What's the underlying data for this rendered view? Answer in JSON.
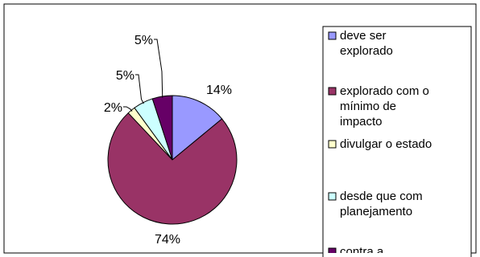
{
  "chart_data": {
    "type": "pie",
    "title": "",
    "slices": [
      {
        "label": "deve ser explorado",
        "legend_lines": [
          "deve ser",
          "explorado"
        ],
        "value": 14,
        "percent_label": "14%",
        "color": "#9999FF"
      },
      {
        "label": "explorado com o mínimo de impacto",
        "legend_lines": [
          "explorado com o",
          "mínimo de",
          "impacto"
        ],
        "value": 74,
        "percent_label": "74%",
        "color": "#993366"
      },
      {
        "label": "divulgar o estado",
        "legend_lines": [
          "divulgar o estado"
        ],
        "value": 2,
        "percent_label": "2%",
        "color": "#FFFFCC"
      },
      {
        "label": "desde que com planejamento",
        "legend_lines": [
          "desde que com",
          "planejamento"
        ],
        "value": 5,
        "percent_label": "5%",
        "color": "#CCFFFF"
      },
      {
        "label": "contra a",
        "legend_lines": [
          "contra a"
        ],
        "value": 5,
        "percent_label": "5%",
        "color": "#660066"
      }
    ],
    "legend_position": "right"
  }
}
